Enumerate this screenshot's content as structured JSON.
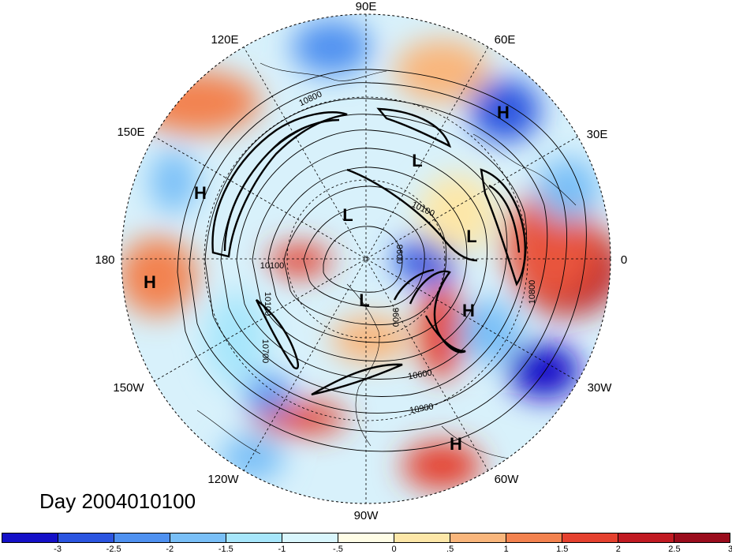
{
  "title": "Day 2004010100",
  "longitude_labels": [
    "90E",
    "60E",
    "30E",
    "0",
    "30W",
    "60W",
    "90W",
    "120W",
    "150W",
    "180",
    "150E",
    "120E"
  ],
  "pressure_centers": [
    "H",
    "H",
    "H",
    "H",
    "H",
    "L",
    "L",
    "L",
    "L"
  ],
  "contour_labels": [
    "10800",
    "10100",
    "10100",
    "9600",
    "10100",
    "10700",
    "10600",
    "10900",
    "9600",
    "10800"
  ],
  "colorbar": {
    "colors": [
      "#1410c8",
      "#2b55e0",
      "#4f91f0",
      "#79bff7",
      "#a7e6fb",
      "#d9f6fd",
      "#fffde6",
      "#fde7a8",
      "#f9b67c",
      "#f3824f",
      "#e5412f",
      "#c11a22",
      "#9a0c1c"
    ],
    "labels": [
      "-3",
      "-2.5",
      "-2",
      "-1.5",
      "-1",
      "-.5",
      "0",
      ".5",
      "1",
      "1.5",
      "2",
      "2.5",
      "3"
    ]
  }
}
